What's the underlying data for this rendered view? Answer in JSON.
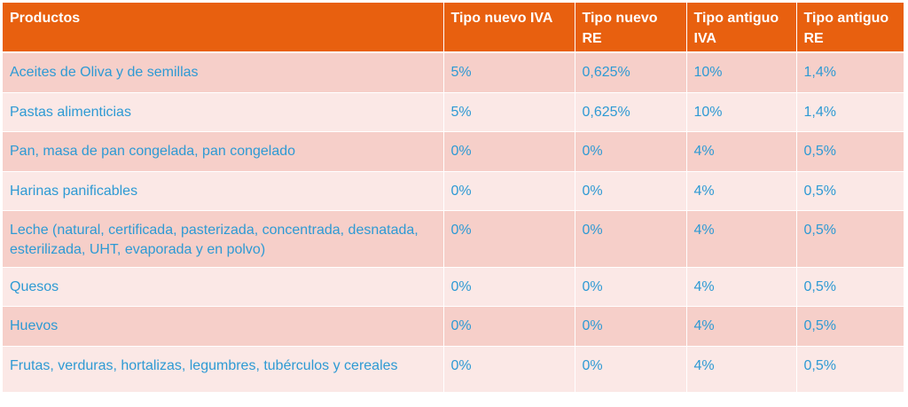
{
  "table": {
    "headers": [
      "Productos",
      "Tipo nuevo IVA",
      "Tipo nuevo RE",
      "Tipo antiguo IVA",
      "Tipo antiguo RE"
    ],
    "rows": [
      [
        "Aceites de Oliva y de semillas",
        "5%",
        "0,625%",
        "10%",
        "1,4%"
      ],
      [
        "Pastas alimenticias",
        "5%",
        "0,625%",
        "10%",
        "1,4%"
      ],
      [
        "Pan, masa de pan congelada, pan congelado",
        "0%",
        "0%",
        "4%",
        "0,5%"
      ],
      [
        "Harinas panificables",
        "0%",
        "0%",
        "4%",
        "0,5%"
      ],
      [
        "Leche (natural, certificada, pasterizada, concentrada, desnatada, esterilizada, UHT, evaporada y en polvo)",
        "0%",
        "0%",
        "4%",
        "0,5%"
      ],
      [
        "Quesos",
        "0%",
        "0%",
        "4%",
        "0,5%"
      ],
      [
        "Huevos",
        "0%",
        "0%",
        "4%",
        "0,5%"
      ],
      [
        "Frutas, verduras, hortalizas, legumbres, tubérculos y cereales",
        "0%",
        "0%",
        "4%",
        "0,5%"
      ]
    ]
  },
  "colors": {
    "header_bg": "#e8600f",
    "header_text": "#ffffff",
    "row_dark": "#f6cfc9",
    "row_light": "#fbe8e6",
    "cell_text": "#2e9ad4"
  }
}
